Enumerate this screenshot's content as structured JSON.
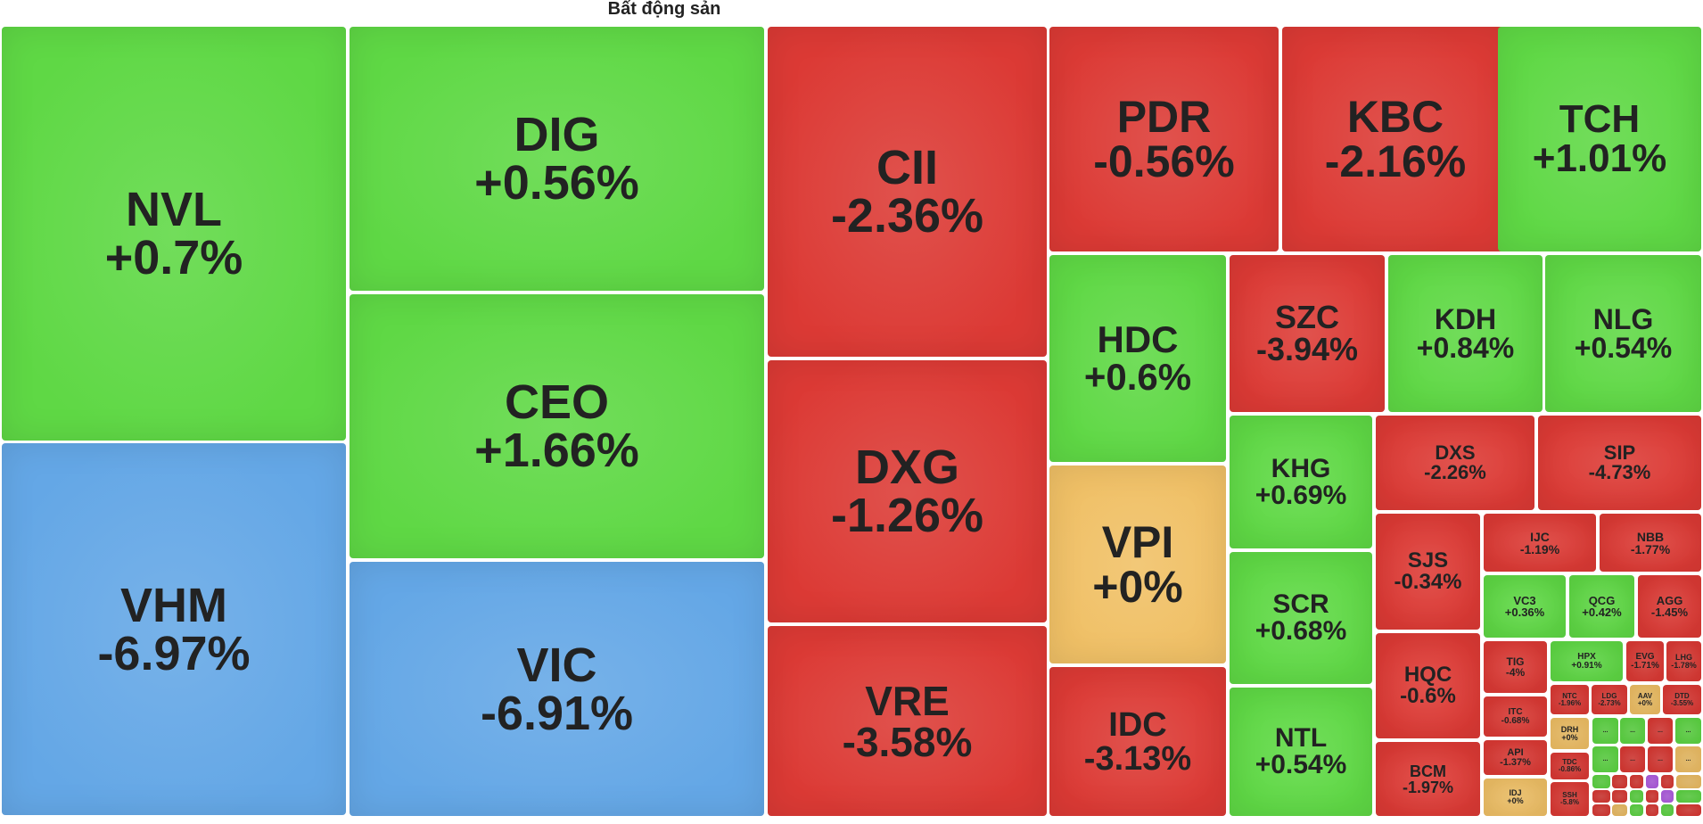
{
  "colors": {
    "up": "#5fd845",
    "down": "#dc3a35",
    "flat": "#f0c066",
    "floor": "#64a7e6",
    "ceiling": "#b45fe6"
  },
  "chart_data": {
    "type": "treemap",
    "title": "Bất động sản",
    "items": [
      {
        "ticker": "NVL",
        "change": "+0.7%",
        "value": 0.7
      },
      {
        "ticker": "VHM",
        "change": "-6.97%",
        "value": -6.97
      },
      {
        "ticker": "DIG",
        "change": "+0.56%",
        "value": 0.56
      },
      {
        "ticker": "CEO",
        "change": "+1.66%",
        "value": 1.66
      },
      {
        "ticker": "VIC",
        "change": "-6.91%",
        "value": -6.91
      },
      {
        "ticker": "CII",
        "change": "-2.36%",
        "value": -2.36
      },
      {
        "ticker": "DXG",
        "change": "-1.26%",
        "value": -1.26
      },
      {
        "ticker": "VRE",
        "change": "-3.58%",
        "value": -3.58
      },
      {
        "ticker": "PDR",
        "change": "-0.56%",
        "value": -0.56
      },
      {
        "ticker": "KBC",
        "change": "-2.16%",
        "value": -2.16
      },
      {
        "ticker": "TCH",
        "change": "+1.01%",
        "value": 1.01
      },
      {
        "ticker": "HDC",
        "change": "+0.6%",
        "value": 0.6
      },
      {
        "ticker": "SZC",
        "change": "-3.94%",
        "value": -3.94
      },
      {
        "ticker": "KDH",
        "change": "+0.84%",
        "value": 0.84
      },
      {
        "ticker": "NLG",
        "change": "+0.54%",
        "value": 0.54
      },
      {
        "ticker": "VPI",
        "change": "+0%",
        "value": 0
      },
      {
        "ticker": "IDC",
        "change": "-3.13%",
        "value": -3.13
      },
      {
        "ticker": "KHG",
        "change": "+0.69%",
        "value": 0.69
      },
      {
        "ticker": "SCR",
        "change": "+0.68%",
        "value": 0.68
      },
      {
        "ticker": "NTL",
        "change": "+0.54%",
        "value": 0.54
      },
      {
        "ticker": "DXS",
        "change": "-2.26%",
        "value": -2.26
      },
      {
        "ticker": "SIP",
        "change": "-4.73%",
        "value": -4.73
      },
      {
        "ticker": "SJS",
        "change": "-0.34%",
        "value": -0.34
      },
      {
        "ticker": "HQC",
        "change": "-0.6%",
        "value": -0.6
      },
      {
        "ticker": "BCM",
        "change": "-1.97%",
        "value": -1.97
      },
      {
        "ticker": "IJC",
        "change": "-1.19%",
        "value": -1.19
      },
      {
        "ticker": "NBB",
        "change": "-1.77%",
        "value": -1.77
      },
      {
        "ticker": "VC3",
        "change": "+0.36%",
        "value": 0.36
      },
      {
        "ticker": "QCG",
        "change": "+0.42%",
        "value": 0.42
      },
      {
        "ticker": "AGG",
        "change": "-1.45%",
        "value": -1.45
      },
      {
        "ticker": "TIG",
        "change": "-4%",
        "value": -4
      },
      {
        "ticker": "HPX",
        "change": "+0.91%",
        "value": 0.91
      },
      {
        "ticker": "EVG",
        "change": "-1.71%",
        "value": -1.71
      },
      {
        "ticker": "LHG",
        "change": "-1.78%",
        "value": -1.78
      },
      {
        "ticker": "ITC",
        "change": "-0.68%",
        "value": -0.68
      },
      {
        "ticker": "NTC",
        "change": "-1.96%",
        "value": -1.96
      },
      {
        "ticker": "LDG",
        "change": "-2.73%",
        "value": -2.73
      },
      {
        "ticker": "AAV",
        "change": "+0%",
        "value": 0
      },
      {
        "ticker": "DTD",
        "change": "-3.55%",
        "value": -3.55
      },
      {
        "ticker": "API",
        "change": "-1.37%",
        "value": -1.37
      },
      {
        "ticker": "DRH",
        "change": "+0%",
        "value": 0
      },
      {
        "ticker": "IDJ",
        "change": "+0%",
        "value": 0
      },
      {
        "ticker": "TDC",
        "change": "-0.86%",
        "value": -0.86
      },
      {
        "ticker": "SSH",
        "change": "-5.8%",
        "value": -5.8
      },
      {
        "ticker": "",
        "change": "...",
        "color_class": "up"
      },
      {
        "ticker": "",
        "change": "...",
        "color_class": "up"
      },
      {
        "ticker": "",
        "change": "...",
        "color_class": "down"
      },
      {
        "ticker": "",
        "change": "...",
        "color_class": "up"
      },
      {
        "ticker": "",
        "change": "...",
        "color_class": "up"
      },
      {
        "ticker": "",
        "change": "...",
        "color_class": "down"
      },
      {
        "ticker": "",
        "change": "...",
        "color_class": "down"
      },
      {
        "ticker": "",
        "change": "...",
        "color_class": "flat"
      },
      {
        "ticker": "",
        "change": "",
        "color_class": "up"
      },
      {
        "ticker": "",
        "change": "",
        "color_class": "down"
      },
      {
        "ticker": "",
        "change": "",
        "color_class": "down"
      },
      {
        "ticker": "",
        "change": "",
        "color_class": "ceiling"
      },
      {
        "ticker": "",
        "change": "",
        "color_class": "down"
      },
      {
        "ticker": "",
        "change": "",
        "color_class": "flat"
      },
      {
        "ticker": "",
        "change": "",
        "color_class": "down"
      },
      {
        "ticker": "",
        "change": "",
        "color_class": "down"
      },
      {
        "ticker": "",
        "change": "",
        "color_class": "up"
      },
      {
        "ticker": "",
        "change": "",
        "color_class": "down"
      },
      {
        "ticker": "",
        "change": "",
        "color_class": "ceiling"
      },
      {
        "ticker": "",
        "change": "",
        "color_class": "up"
      },
      {
        "ticker": "",
        "change": "",
        "color_class": "down"
      },
      {
        "ticker": "",
        "change": "",
        "color_class": "flat"
      },
      {
        "ticker": "",
        "change": "",
        "color_class": "up"
      },
      {
        "ticker": "",
        "change": "",
        "color_class": "down"
      },
      {
        "ticker": "",
        "change": "",
        "color_class": "up"
      },
      {
        "ticker": "",
        "change": "",
        "color_class": "down"
      },
      {
        "ticker": "",
        "change": "",
        "color_class": "ceiling"
      }
    ]
  }
}
